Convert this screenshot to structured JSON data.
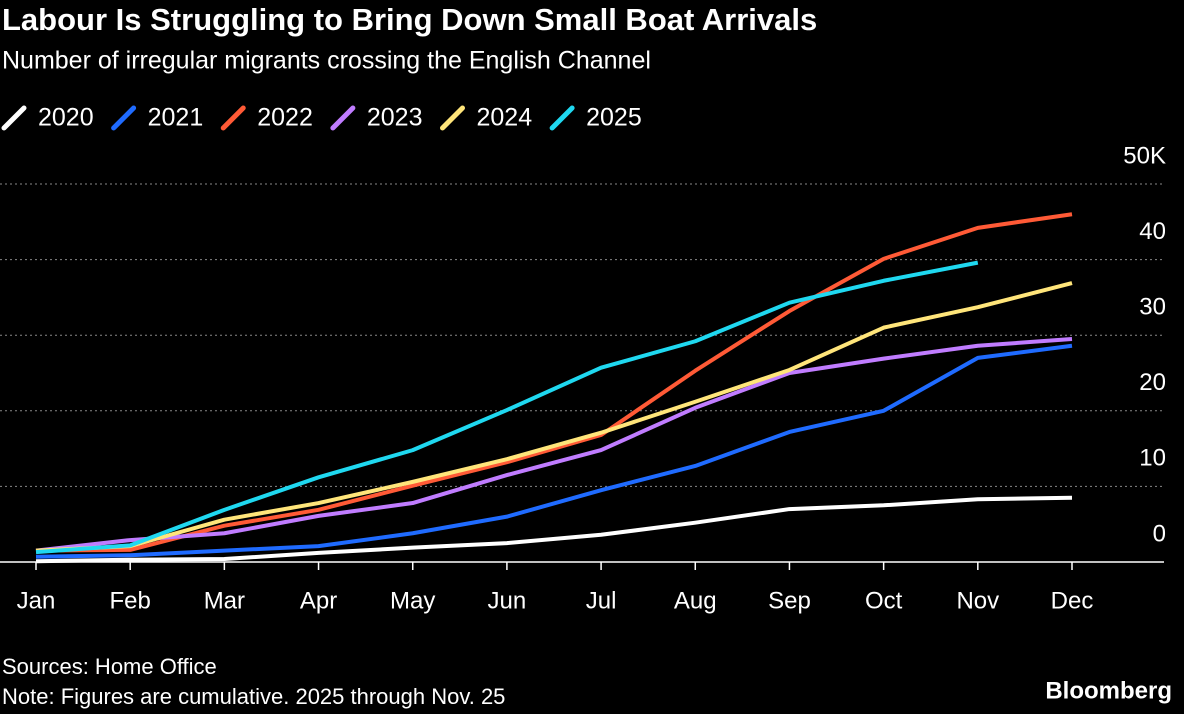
{
  "chart_data": {
    "type": "line",
    "title": "Labour Is Struggling to Bring Down Small Boat Arrivals",
    "subtitle": "Number of irregular migrants crossing the English Channel",
    "categories": [
      "Jan",
      "Feb",
      "Mar",
      "Apr",
      "May",
      "Jun",
      "Jul",
      "Aug",
      "Sep",
      "Oct",
      "Nov",
      "Dec"
    ],
    "series": [
      {
        "name": "2020",
        "color": "#ffffff",
        "values": [
          0.1,
          0.3,
          0.4,
          1.2,
          1.9,
          2.5,
          3.6,
          5.2,
          7.0,
          7.5,
          8.3,
          8.5
        ]
      },
      {
        "name": "2021",
        "color": "#1f6bff",
        "values": [
          0.7,
          0.9,
          1.5,
          2.1,
          3.8,
          6.0,
          9.5,
          12.7,
          17.2,
          20.0,
          27.0,
          28.6
        ]
      },
      {
        "name": "2022",
        "color": "#ff5a36",
        "values": [
          1.5,
          1.6,
          4.8,
          6.9,
          10.1,
          13.2,
          16.8,
          25.3,
          33.2,
          40.1,
          44.2,
          46.0
        ]
      },
      {
        "name": "2023",
        "color": "#c07cff",
        "values": [
          1.5,
          2.9,
          3.8,
          6.1,
          7.8,
          11.5,
          14.8,
          20.4,
          25.0,
          26.9,
          28.6,
          29.5
        ]
      },
      {
        "name": "2024",
        "color": "#ffe57a",
        "values": [
          1.5,
          2.1,
          5.6,
          7.8,
          10.6,
          13.6,
          17.1,
          21.2,
          25.4,
          31.0,
          33.7,
          36.9
        ]
      },
      {
        "name": "2025",
        "color": "#1fd8f0",
        "values": [
          1.3,
          2.2,
          6.9,
          11.2,
          14.8,
          20.1,
          25.7,
          29.2,
          34.3,
          37.2,
          39.6,
          null
        ]
      }
    ],
    "ylim": [
      0,
      50
    ],
    "yticks": [
      0,
      10,
      20,
      30,
      40,
      {
        "value": 50,
        "label": "50K"
      }
    ],
    "grid": true,
    "source": "Sources: Home Office",
    "note": "Note: Figures are cumulative. 2025 through Nov. 25",
    "brand": "Bloomberg"
  }
}
